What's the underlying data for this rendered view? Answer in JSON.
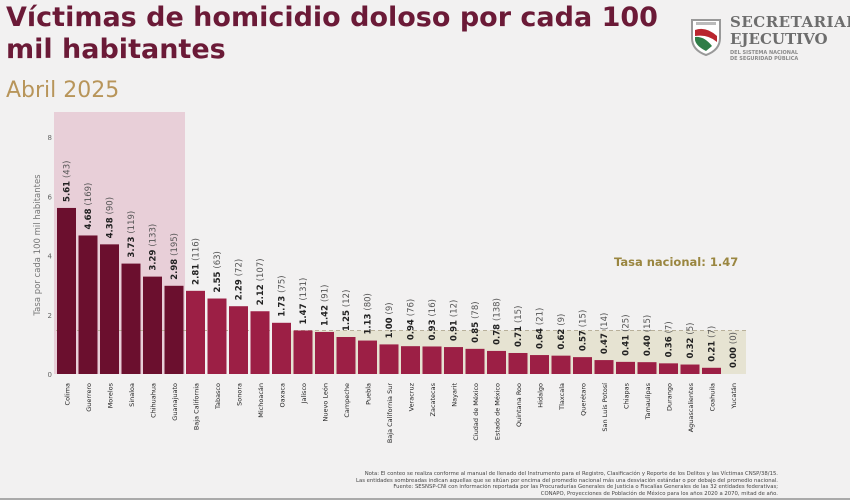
{
  "header": {
    "title": "Víctimas de homicidio doloso por cada 100 mil habitantes",
    "subtitle": "Abril 2025"
  },
  "logo": {
    "line1": "SECRETARIADO",
    "line2": "EJECUTIVO",
    "line3": "DEL SISTEMA NACIONAL",
    "line4": "DE SEGURIDAD PÚBLICA"
  },
  "chart_data": {
    "type": "bar",
    "ylabel": "Tasa por cada 100 mil habitantes",
    "ylim": [
      0,
      8.5
    ],
    "yticks": [
      0,
      2,
      4,
      6,
      8
    ],
    "grid": false,
    "categories": [
      "Colima",
      "Guerrero",
      "Morelos",
      "Sinaloa",
      "Chihuahua",
      "Guanajuato",
      "Baja California",
      "Tabasco",
      "Sonora",
      "Michoacán",
      "Oaxaca",
      "Jalisco",
      "Nuevo León",
      "Campeche",
      "Puebla",
      "Baja California Sur",
      "Veracruz",
      "Zacatecas",
      "Nayarit",
      "Ciudad de México",
      "Estado de México",
      "Quintana Roo",
      "Hidalgo",
      "Tlaxcala",
      "Querétaro",
      "San Luis Potosí",
      "Chiapas",
      "Tamaulipas",
      "Durango",
      "Aguascalientes",
      "Coahuila",
      "Yucatán"
    ],
    "values": [
      5.61,
      4.68,
      4.38,
      3.73,
      3.29,
      2.98,
      2.81,
      2.55,
      2.29,
      2.12,
      1.73,
      1.47,
      1.42,
      1.25,
      1.13,
      1.0,
      0.94,
      0.93,
      0.91,
      0.85,
      0.78,
      0.71,
      0.64,
      0.62,
      0.57,
      0.47,
      0.41,
      0.4,
      0.36,
      0.32,
      0.21,
      0.0
    ],
    "value_labels": [
      "5.61",
      "4.68",
      "4.38",
      "3.73",
      "3.29",
      "2.98",
      "2.81",
      "2.55",
      "2.29",
      "2.12",
      "1.73",
      "1.47",
      "1.42",
      "1.25",
      "1.13",
      "1.00",
      "0.94",
      "0.93",
      "0.91",
      "0.85",
      "0.78",
      "0.71",
      "0.64",
      "0.62",
      "0.57",
      "0.47",
      "0.41",
      "0.40",
      "0.36",
      "0.32",
      "0.21",
      "0.00"
    ],
    "counts": [
      "(43)",
      "(169)",
      "(90)",
      "(119)",
      "(133)",
      "(195)",
      "(116)",
      "(63)",
      "(72)",
      "(107)",
      "(75)",
      "(131)",
      "(91)",
      "(12)",
      "(80)",
      "(9)",
      "(76)",
      "(16)",
      "(12)",
      "(78)",
      "(138)",
      "(15)",
      "(21)",
      "(9)",
      "(15)",
      "(14)",
      "(25)",
      "(15)",
      "(7)",
      "(5)",
      "(7)",
      "(0)"
    ],
    "highlight_high_count": 6,
    "highlight_low_from": 11,
    "national_rate": 1.47,
    "national_rate_label": "Tasa nacional: 1.47",
    "colors": {
      "high": "#6b0f2e",
      "normal": "#9c1f45",
      "high_band": "#e8cfd8",
      "low_band": "#e6e3d2",
      "national": "#9a8640"
    }
  },
  "notes": [
    "Nota: El conteo se realiza conforme al manual de llenado del Instrumento para el Registro, Clasificación y Reporte de los Delitos y las Víctimas CNSP/38/15.",
    "Las entidades sombreadas indican aquellas que se sitúan por encima del promedio nacional más una desviación estándar o por debajo del promedio nacional.",
    "Fuente: SESNSP-CNI con información reportada por las Procuradurías Generales de Justicia o Fiscalías Generales de las 32 entidades federativas;",
    "CONAPO, Proyecciones de Población de México para los años 2020 a 2070, mitad de año."
  ]
}
